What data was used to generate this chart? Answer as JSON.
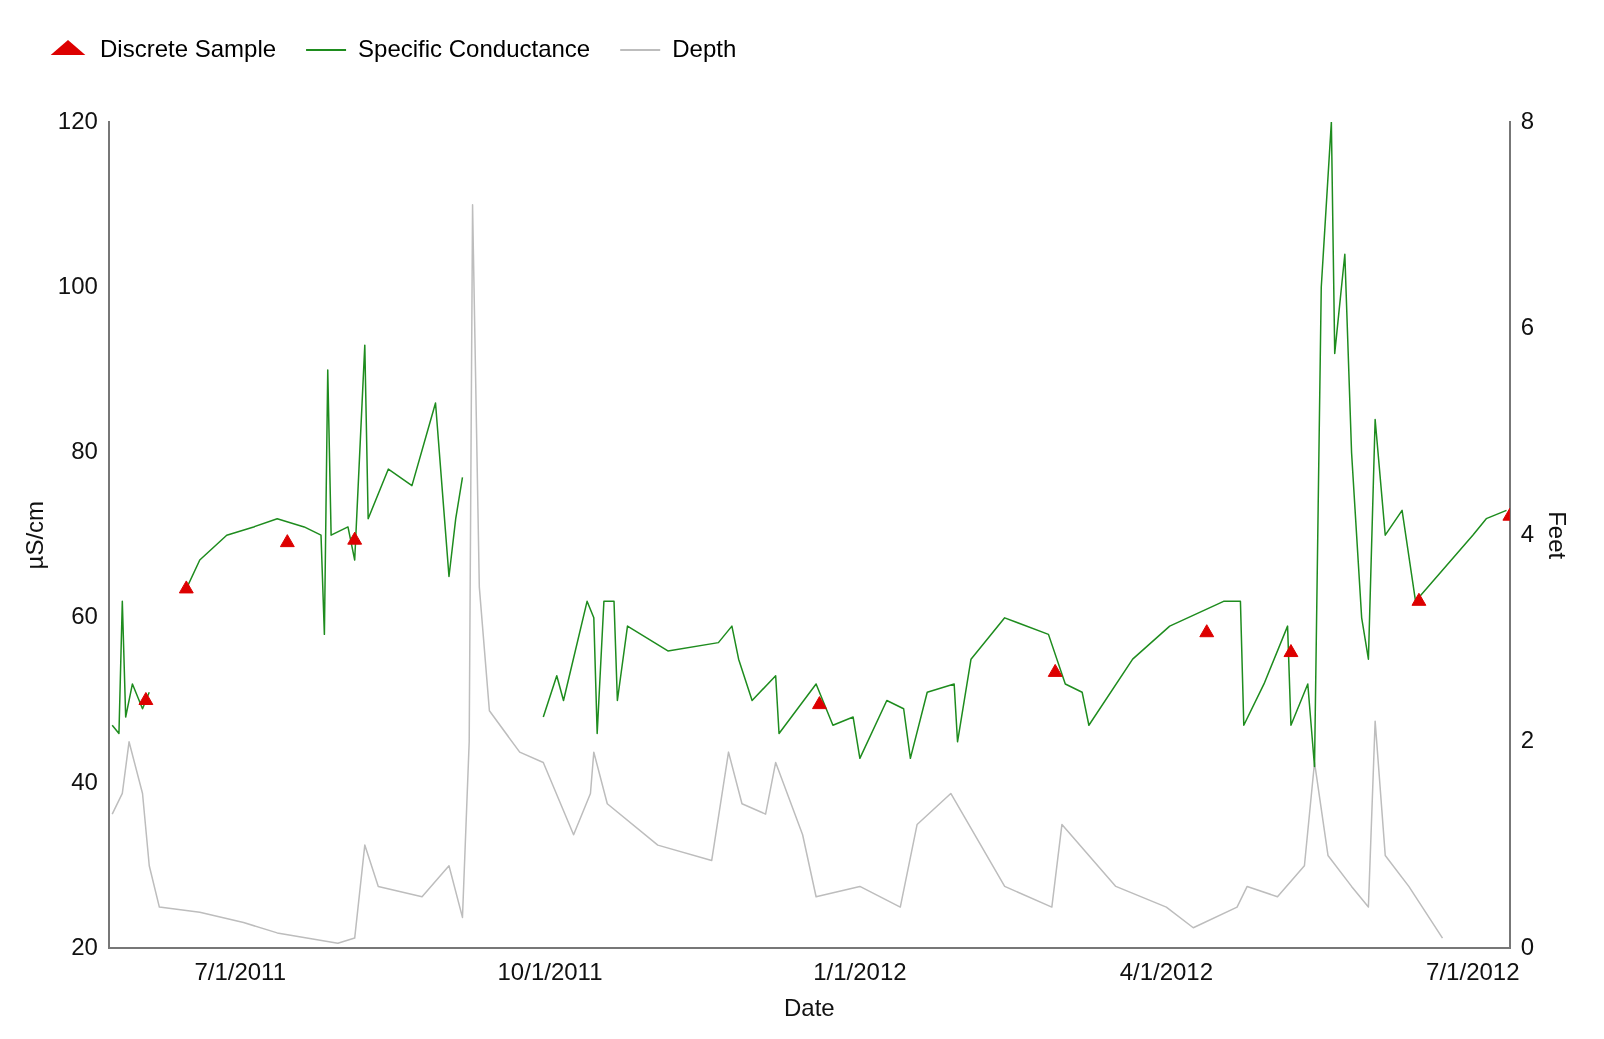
{
  "chart_data": {
    "type": "line",
    "xlabel": "Date",
    "ylabel": "µS/cm",
    "y2label": "Feet",
    "legend": "top left",
    "xlim": [
      "2011-05-23",
      "2012-07-12"
    ],
    "xticks": [
      {
        "value": "2011-07-01",
        "label": "7/1/2011"
      },
      {
        "value": "2011-10-01",
        "label": "10/1/2011"
      },
      {
        "value": "2012-01-01",
        "label": "1/1/2012"
      },
      {
        "value": "2012-04-01",
        "label": "4/1/2012"
      },
      {
        "value": "2012-07-01",
        "label": "7/1/2012"
      }
    ],
    "ylim": [
      20,
      120
    ],
    "yticks": [
      20,
      40,
      60,
      80,
      100,
      120
    ],
    "y2lim": [
      0,
      8
    ],
    "y2ticks": [
      0,
      2,
      4,
      6,
      8
    ],
    "series": [
      {
        "name": "Discrete Sample",
        "type": "scatter",
        "marker": "triangle",
        "color": "#dd0000",
        "x": [
          "2011-06-03",
          "2011-06-15",
          "2011-07-15",
          "2011-08-04",
          "2011-12-20",
          "2012-02-28",
          "2012-04-13",
          "2012-05-08",
          "2012-06-15",
          "2012-07-12"
        ],
        "values": [
          50,
          63.5,
          69.1,
          69.4,
          49.5,
          53.4,
          58.2,
          55.8,
          62,
          72.3
        ]
      },
      {
        "name": "Specific Conductance",
        "color": "#1e8c1e",
        "x": [
          "2011-05-24",
          "2011-05-26",
          "2011-05-27",
          "2011-05-28",
          "2011-05-30",
          "2011-06-02",
          "2011-06-04",
          "2011-06-10",
          "2011-06-15",
          "2011-06-19",
          "2011-06-27",
          "2011-07-05",
          "2011-07-12",
          "2011-07-20",
          "2011-07-25",
          "2011-07-26",
          "2011-07-27",
          "2011-07-28",
          "2011-08-02",
          "2011-08-04",
          "2011-08-07",
          "2011-08-08",
          "2011-08-14",
          "2011-08-21",
          "2011-08-28",
          "2011-09-01",
          "2011-09-03",
          "2011-09-05",
          "2011-09-15",
          "2011-09-29",
          "2011-10-03",
          "2011-10-05",
          "2011-10-12",
          "2011-10-14",
          "2011-10-15",
          "2011-10-17",
          "2011-10-20",
          "2011-10-21",
          "2011-10-24",
          "2011-11-05",
          "2011-11-20",
          "2011-11-24",
          "2011-11-26",
          "2011-11-30",
          "2011-12-07",
          "2011-12-08",
          "2011-12-19",
          "2011-12-24",
          "2011-12-30",
          "2012-01-01",
          "2012-01-09",
          "2012-01-14",
          "2012-01-16",
          "2012-01-21",
          "2012-01-29",
          "2012-01-30",
          "2012-02-03",
          "2012-02-13",
          "2012-02-26",
          "2012-03-02",
          "2012-03-07",
          "2012-03-09",
          "2012-03-22",
          "2012-04-02",
          "2012-04-18",
          "2012-04-23",
          "2012-04-24",
          "2012-04-30",
          "2012-05-07",
          "2012-05-08",
          "2012-05-13",
          "2012-05-15",
          "2012-05-17",
          "2012-05-20",
          "2012-05-21",
          "2012-05-24",
          "2012-05-26",
          "2012-05-29",
          "2012-05-31",
          "2012-06-02",
          "2012-06-05",
          "2012-06-10",
          "2012-06-14",
          "2012-07-01",
          "2012-07-05",
          "2012-07-11"
        ],
        "values": [
          47,
          46,
          62,
          48,
          52,
          49,
          51,
          null,
          63.5,
          67,
          70,
          71,
          72,
          71,
          70,
          58,
          90,
          70,
          71,
          67,
          93,
          72,
          78,
          76,
          86,
          65,
          72,
          77,
          null,
          48,
          53,
          50,
          62,
          60,
          46,
          62,
          62,
          50,
          59,
          56,
          57,
          59,
          55,
          50,
          53,
          46,
          52,
          47,
          48,
          43,
          50,
          49,
          43,
          51,
          52,
          45,
          55,
          60,
          58,
          52,
          51,
          47,
          55,
          59,
          62,
          62,
          47,
          52,
          59,
          47,
          52,
          42,
          100,
          120,
          92,
          104,
          80,
          60,
          55,
          84,
          70,
          73,
          62,
          70,
          72,
          73
        ]
      },
      {
        "name": "Depth",
        "axis": "y2",
        "color": "#bdbdbd",
        "x": [
          "2011-05-24",
          "2011-05-27",
          "2011-05-29",
          "2011-06-02",
          "2011-06-04",
          "2011-06-07",
          "2011-06-19",
          "2011-07-02",
          "2011-07-12",
          "2011-07-30",
          "2011-08-04",
          "2011-08-07",
          "2011-08-11",
          "2011-08-24",
          "2011-09-01",
          "2011-09-05",
          "2011-09-07",
          "2011-09-08",
          "2011-09-10",
          "2011-09-13",
          "2011-09-22",
          "2011-09-29",
          "2011-10-08",
          "2011-10-13",
          "2011-10-14",
          "2011-10-18",
          "2011-11-02",
          "2011-11-18",
          "2011-11-23",
          "2011-11-27",
          "2011-12-04",
          "2011-12-07",
          "2011-12-15",
          "2011-12-19",
          "2012-01-01",
          "2012-01-13",
          "2012-01-18",
          "2012-01-28",
          "2012-02-13",
          "2012-02-27",
          "2012-03-01",
          "2012-03-17",
          "2012-04-01",
          "2012-04-09",
          "2012-04-22",
          "2012-04-25",
          "2012-05-04",
          "2012-05-12",
          "2012-05-15",
          "2012-05-19",
          "2012-05-26",
          "2012-05-31",
          "2012-06-02",
          "2012-06-05",
          "2012-06-12",
          "2012-06-22"
        ],
        "values": [
          1.3,
          1.5,
          2.0,
          1.5,
          0.8,
          0.4,
          0.35,
          0.25,
          0.15,
          0.05,
          0.1,
          1.0,
          0.6,
          0.5,
          0.8,
          0.3,
          2.0,
          7.2,
          3.5,
          2.3,
          1.9,
          1.8,
          1.1,
          1.5,
          1.9,
          1.4,
          1.0,
          0.85,
          1.9,
          1.4,
          1.3,
          1.8,
          1.1,
          0.5,
          0.6,
          0.4,
          1.2,
          1.5,
          0.6,
          0.4,
          1.2,
          0.6,
          0.4,
          0.2,
          0.4,
          0.6,
          0.5,
          0.8,
          1.8,
          0.9,
          0.6,
          0.4,
          2.2,
          0.9,
          0.6,
          0.1
        ]
      }
    ]
  }
}
